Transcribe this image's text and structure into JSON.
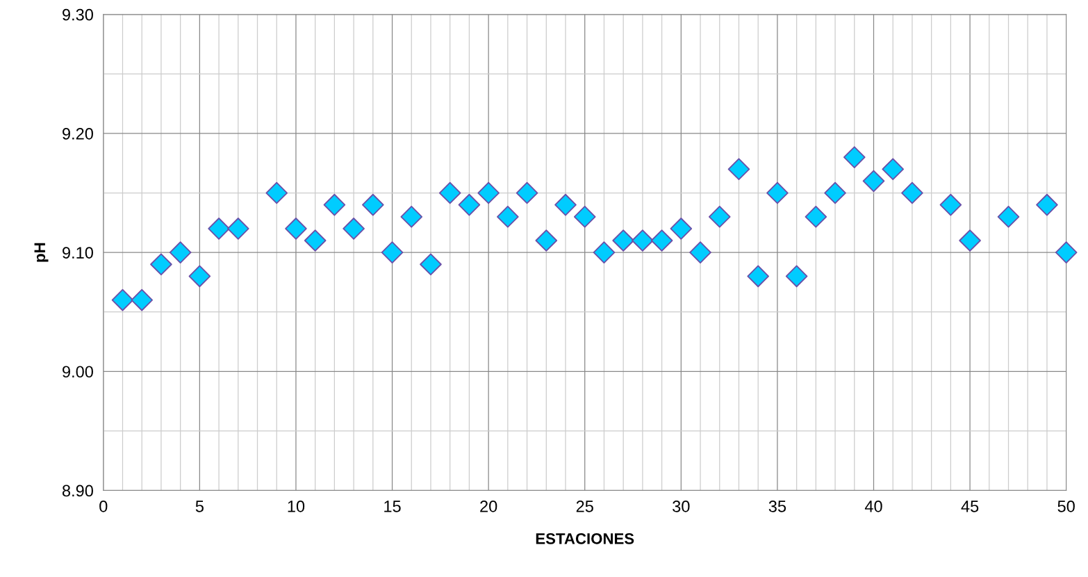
{
  "chart_data": {
    "type": "scatter",
    "xlabel": "ESTACIONES",
    "ylabel": "pH",
    "x": [
      1,
      2,
      3,
      4,
      5,
      6,
      7,
      9,
      10,
      11,
      12,
      13,
      14,
      15,
      16,
      17,
      18,
      19,
      20,
      21,
      22,
      23,
      24,
      25,
      26,
      27,
      28,
      29,
      30,
      31,
      32,
      33,
      34,
      35,
      36,
      37,
      38,
      39,
      40,
      41,
      42,
      44,
      45,
      47,
      49,
      50
    ],
    "values": [
      9.06,
      9.06,
      9.09,
      9.1,
      9.08,
      9.12,
      9.12,
      9.15,
      9.12,
      9.11,
      9.14,
      9.12,
      9.14,
      9.1,
      9.13,
      9.09,
      9.15,
      9.14,
      9.15,
      9.13,
      9.15,
      9.11,
      9.14,
      9.13,
      9.1,
      9.11,
      9.11,
      9.11,
      9.12,
      9.1,
      9.13,
      9.17,
      9.08,
      9.15,
      9.08,
      9.13,
      9.15,
      9.18,
      9.16,
      9.17,
      9.15,
      9.14,
      9.11,
      9.13,
      9.14,
      9.1
    ],
    "color": "#00ccff",
    "marker": "diamond",
    "grid": true,
    "xlim": [
      0,
      50
    ],
    "xticks": [
      0,
      5,
      10,
      15,
      20,
      25,
      30,
      35,
      40,
      45,
      50
    ],
    "ylim": [
      8.9,
      9.3
    ],
    "yticks": [
      {
        "value": 8.9,
        "label": "8.90"
      },
      {
        "value": 9.0,
        "label": "9.00"
      },
      {
        "value": 9.1,
        "label": "9.10"
      },
      {
        "value": 9.2,
        "label": "9.20"
      },
      {
        "value": 9.3,
        "label": "9.30"
      }
    ]
  }
}
